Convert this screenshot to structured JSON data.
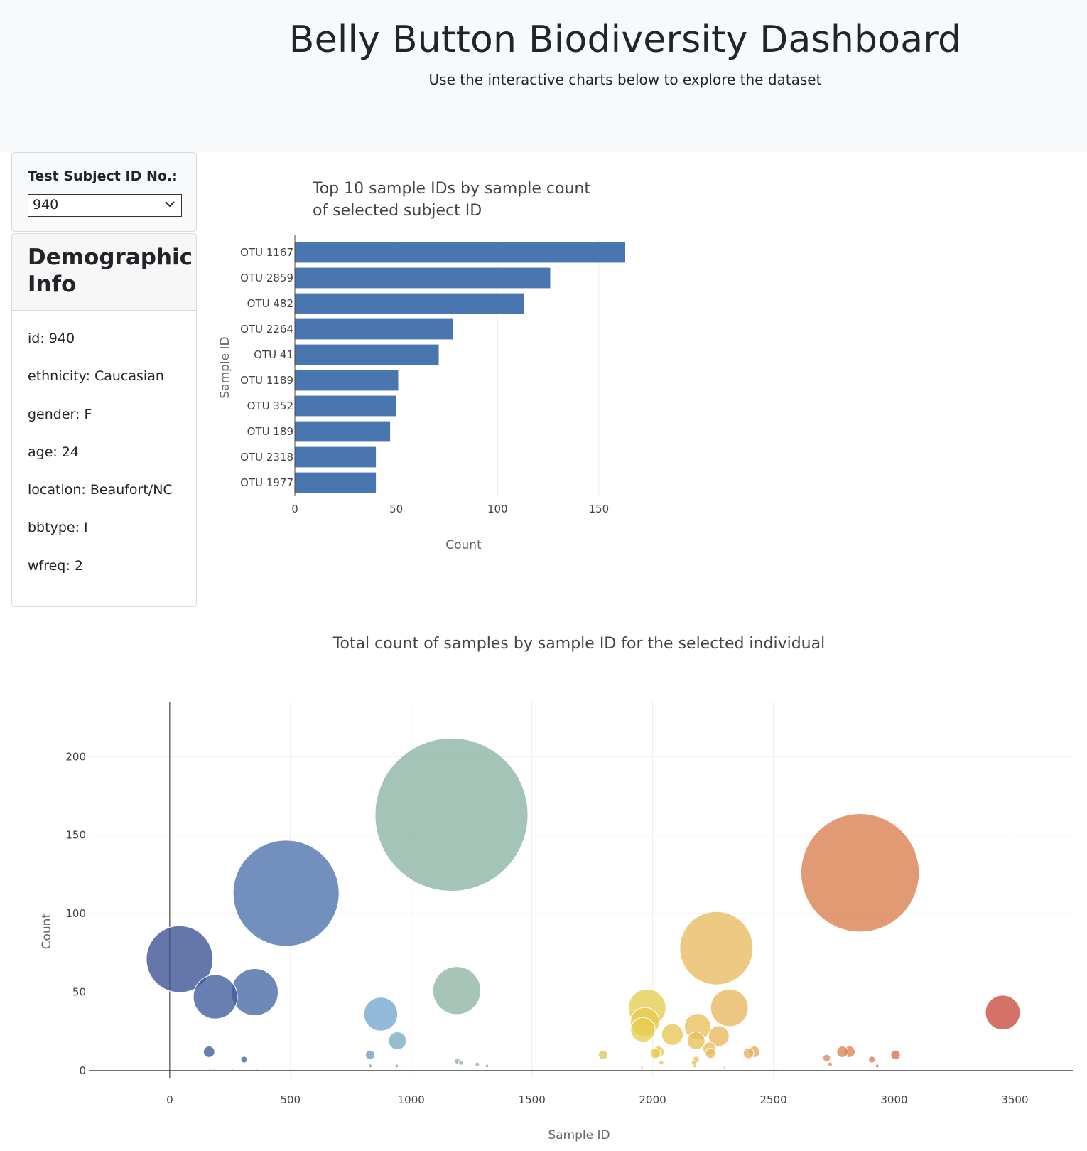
{
  "header": {
    "title": "Belly Button Biodiversity Dashboard",
    "subtitle": "Use the interactive charts below to explore the dataset"
  },
  "selector": {
    "label": "Test Subject ID No.:",
    "selected": "940",
    "icon": "chevron-down-icon"
  },
  "demographics": {
    "title": "Demographic Info",
    "items": [
      "id: 940",
      "ethnicity: Caucasian",
      "gender: F",
      "age: 24",
      "location: Beaufort/NC",
      "bbtype: I",
      "wfreq: 2"
    ]
  },
  "colors": {
    "bar": "#4a76b0",
    "axis": "#444444",
    "grid": "#eeeeee",
    "axis_title": "#666666"
  },
  "chart_data": [
    {
      "type": "bar",
      "orientation": "horizontal",
      "title_lines": [
        "Top 10 sample IDs by sample count",
        "of selected subject ID"
      ],
      "xlabel": "Count",
      "ylabel": "Sample ID",
      "xlim": [
        0,
        163
      ],
      "x_ticks": [
        0,
        50,
        100,
        150
      ],
      "categories": [
        "OTU 1167",
        "OTU 2859",
        "OTU 482",
        "OTU 2264",
        "OTU 41",
        "OTU 1189",
        "OTU 352",
        "OTU 189",
        "OTU 2318",
        "OTU 1977"
      ],
      "values": [
        163,
        126,
        113,
        78,
        71,
        51,
        50,
        47,
        40,
        40
      ]
    },
    {
      "type": "scatter",
      "marker": "bubble",
      "title": "Total count of samples by sample ID for the selected individual",
      "xlabel": "Sample ID",
      "ylabel": "Count",
      "xlim": [
        -335,
        3740
      ],
      "ylim": [
        -5,
        235
      ],
      "x_ticks": [
        0,
        500,
        1000,
        1500,
        2000,
        2500,
        3000,
        3500
      ],
      "y_ticks": [
        0,
        50,
        100,
        150,
        200
      ],
      "colorscale": "Earth",
      "grid": true,
      "points": [
        {
          "x": 1167,
          "y": 163
        },
        {
          "x": 2859,
          "y": 126
        },
        {
          "x": 482,
          "y": 113
        },
        {
          "x": 2264,
          "y": 78
        },
        {
          "x": 41,
          "y": 71
        },
        {
          "x": 1189,
          "y": 51
        },
        {
          "x": 352,
          "y": 50
        },
        {
          "x": 189,
          "y": 47
        },
        {
          "x": 2318,
          "y": 40
        },
        {
          "x": 1977,
          "y": 40
        },
        {
          "x": 3450,
          "y": 37
        },
        {
          "x": 874,
          "y": 36
        },
        {
          "x": 1968,
          "y": 31
        },
        {
          "x": 1960,
          "y": 26
        },
        {
          "x": 2186,
          "y": 28
        },
        {
          "x": 2082,
          "y": 23
        },
        {
          "x": 2274,
          "y": 22
        },
        {
          "x": 2180,
          "y": 19
        },
        {
          "x": 943,
          "y": 19
        },
        {
          "x": 2235,
          "y": 14
        },
        {
          "x": 2024,
          "y": 12
        },
        {
          "x": 2421,
          "y": 12
        },
        {
          "x": 2815,
          "y": 12
        },
        {
          "x": 163,
          "y": 12
        },
        {
          "x": 2786,
          "y": 12
        },
        {
          "x": 2240,
          "y": 11
        },
        {
          "x": 2011,
          "y": 11
        },
        {
          "x": 2397,
          "y": 11
        },
        {
          "x": 1795,
          "y": 10
        },
        {
          "x": 3006,
          "y": 10
        },
        {
          "x": 830,
          "y": 10
        },
        {
          "x": 2721,
          "y": 8
        },
        {
          "x": 2908,
          "y": 7
        },
        {
          "x": 308,
          "y": 7
        },
        {
          "x": 2180,
          "y": 7
        },
        {
          "x": 1191,
          "y": 6
        },
        {
          "x": 2036,
          "y": 5
        },
        {
          "x": 2170,
          "y": 5
        },
        {
          "x": 1207,
          "y": 5
        },
        {
          "x": 1274,
          "y": 4
        },
        {
          "x": 2735,
          "y": 4
        },
        {
          "x": 1314,
          "y": 3
        },
        {
          "x": 940,
          "y": 3
        },
        {
          "x": 2930,
          "y": 3
        },
        {
          "x": 2175,
          "y": 3
        },
        {
          "x": 830,
          "y": 3
        },
        {
          "x": 1955,
          "y": 2
        },
        {
          "x": 2298,
          "y": 2
        },
        {
          "x": 1505,
          "y": 1
        },
        {
          "x": 117,
          "y": 1
        },
        {
          "x": 165,
          "y": 1
        },
        {
          "x": 185,
          "y": 1
        },
        {
          "x": 260,
          "y": 1
        },
        {
          "x": 342,
          "y": 1
        },
        {
          "x": 360,
          "y": 1
        },
        {
          "x": 412,
          "y": 1
        },
        {
          "x": 513,
          "y": 1
        },
        {
          "x": 725,
          "y": 1
        },
        {
          "x": 2485,
          "y": 1
        },
        {
          "x": 2510,
          "y": 1
        },
        {
          "x": 2542,
          "y": 1
        },
        {
          "x": 2568,
          "y": 1
        },
        {
          "x": 2022,
          "y": 1
        }
      ]
    }
  ]
}
